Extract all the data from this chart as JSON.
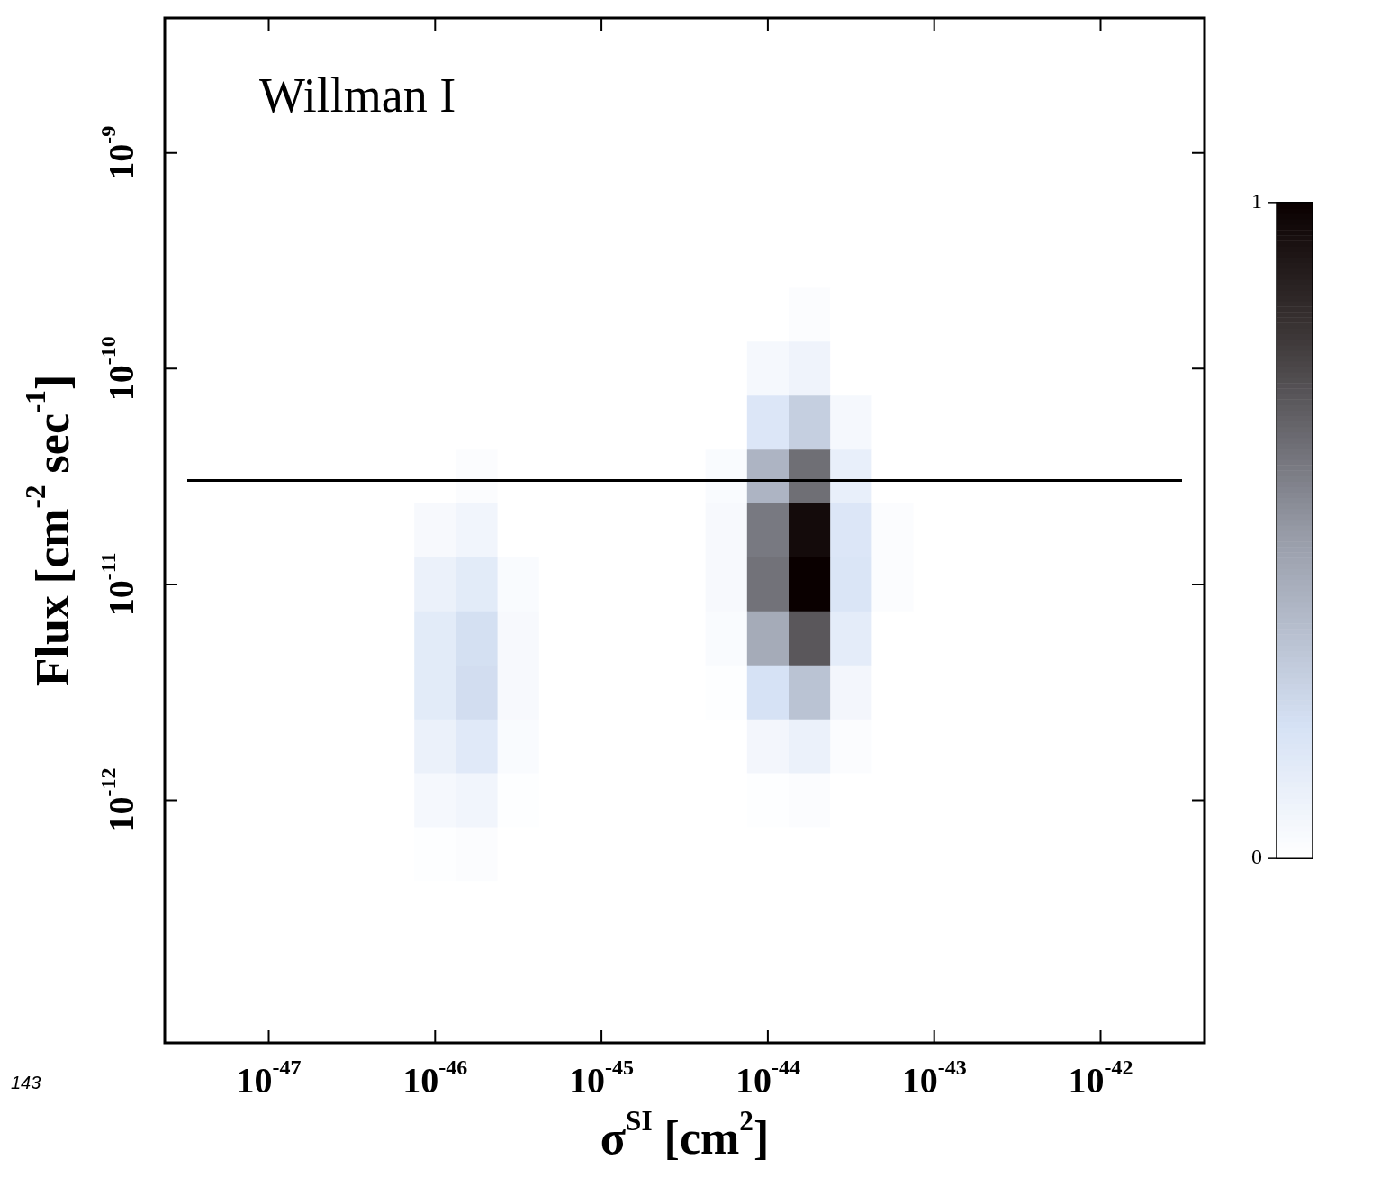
{
  "chart_data": {
    "type": "heatmap",
    "xlabel": "σ$^{SI}$ [cm$^{2}$]",
    "ylabel": "Flux [cm$^{-2}$ sec$^{-1}$]",
    "annotations": [
      "Willman I",
      "143"
    ],
    "clim": [
      0,
      1
    ],
    "cticks": [
      0,
      1
    ],
    "categories": [
      null,
      null,
      "10$^{-47}$",
      null,
      null,
      null,
      "10$^{-46}$",
      null,
      null,
      null,
      "10$^{-45}$",
      null,
      null,
      null,
      "10$^{-44}$",
      null,
      null,
      null,
      "10$^{-43}$",
      null,
      null,
      null,
      "10$^{-42}$",
      null,
      null
    ],
    "y_categories": [
      null,
      null,
      "10$^{-9}$",
      null,
      null,
      null,
      "10$^{-10}$",
      null,
      null,
      null,
      "10$^{-11}$",
      null,
      null,
      null,
      "10$^{-12}$",
      null,
      null,
      null,
      null
    ],
    "cells": [
      [
        0,
        0,
        0,
        0,
        0,
        0,
        0,
        0,
        0,
        0,
        0,
        0,
        0,
        0,
        0,
        0,
        0,
        0,
        0,
        0,
        0,
        0,
        0,
        0,
        0
      ],
      [
        0,
        0,
        0,
        0,
        0,
        0,
        0,
        0,
        0,
        0,
        0,
        0,
        0,
        0,
        0,
        0,
        0,
        0,
        0,
        0,
        0,
        0,
        0,
        0,
        0
      ],
      [
        0,
        0,
        0,
        0,
        0,
        0,
        0,
        0,
        0,
        0,
        0,
        0,
        0,
        0,
        0,
        0,
        0,
        0,
        0,
        0,
        0,
        0,
        0,
        0,
        0
      ],
      [
        0,
        0,
        0,
        0,
        0,
        0,
        0,
        0,
        0,
        0,
        0,
        0,
        0,
        0,
        0,
        0,
        0,
        0,
        0,
        0,
        0,
        0,
        0,
        0,
        0
      ],
      [
        0,
        0,
        0,
        0,
        0,
        0,
        0,
        0,
        0,
        0,
        0,
        0,
        0,
        0,
        0,
        0,
        0,
        0,
        0,
        0,
        0,
        0,
        0,
        0,
        0
      ],
      [
        0,
        0,
        0,
        0,
        0,
        0,
        0,
        0,
        0,
        0,
        0,
        0,
        0,
        0,
        0,
        0.02,
        0,
        0,
        0,
        0,
        0,
        0,
        0,
        0,
        0
      ],
      [
        0,
        0,
        0,
        0,
        0,
        0,
        0,
        0,
        0,
        0,
        0,
        0,
        0,
        0,
        0.05,
        0.08,
        0,
        0,
        0,
        0,
        0,
        0,
        0,
        0,
        0
      ],
      [
        0,
        0,
        0,
        0,
        0,
        0,
        0,
        0,
        0,
        0,
        0,
        0,
        0,
        0,
        0.17,
        0.28,
        0.05,
        0,
        0,
        0,
        0,
        0,
        0,
        0,
        0
      ],
      [
        0,
        0,
        0,
        0,
        0,
        0,
        0,
        0.02,
        0,
        0,
        0,
        0,
        0,
        0.03,
        0.39,
        0.63,
        0.11,
        0,
        0,
        0,
        0,
        0,
        0,
        0,
        0
      ],
      [
        0,
        0,
        0,
        0,
        0,
        0,
        0.04,
        0.07,
        0,
        0,
        0,
        0,
        0,
        0.04,
        0.6,
        0.96,
        0.17,
        0.02,
        0,
        0,
        0,
        0,
        0,
        0,
        0
      ],
      [
        0,
        0,
        0,
        0,
        0,
        0,
        0.1,
        0.14,
        0.03,
        0,
        0,
        0,
        0,
        0.04,
        0.62,
        1,
        0.18,
        0.02,
        0,
        0,
        0,
        0,
        0,
        0,
        0
      ],
      [
        0,
        0,
        0,
        0,
        0,
        0,
        0.14,
        0.21,
        0.04,
        0,
        0,
        0,
        0,
        0.03,
        0.43,
        0.7,
        0.13,
        0,
        0,
        0,
        0,
        0,
        0,
        0,
        0
      ],
      [
        0,
        0,
        0,
        0,
        0,
        0,
        0.14,
        0.22,
        0.04,
        0,
        0,
        0,
        0,
        0.01,
        0.2,
        0.33,
        0.06,
        0,
        0,
        0,
        0,
        0,
        0,
        0,
        0
      ],
      [
        0,
        0,
        0,
        0,
        0,
        0,
        0.1,
        0.15,
        0.03,
        0,
        0,
        0,
        0,
        0,
        0.06,
        0.1,
        0.02,
        0,
        0,
        0,
        0,
        0,
        0,
        0,
        0
      ],
      [
        0,
        0,
        0,
        0,
        0,
        0,
        0.05,
        0.07,
        0.01,
        0,
        0,
        0,
        0,
        0,
        0.01,
        0.02,
        0,
        0,
        0,
        0,
        0,
        0,
        0,
        0,
        0
      ],
      [
        0,
        0,
        0,
        0,
        0,
        0,
        0.01,
        0.02,
        0,
        0,
        0,
        0,
        0,
        0,
        0,
        0,
        0,
        0,
        0,
        0,
        0,
        0,
        0,
        0,
        0
      ],
      [
        0,
        0,
        0,
        0,
        0,
        0,
        0,
        0,
        0,
        0,
        0,
        0,
        0,
        0,
        0,
        0,
        0,
        0,
        0,
        0,
        0,
        0,
        0,
        0,
        0
      ],
      [
        0,
        0,
        0,
        0,
        0,
        0,
        0,
        0,
        0,
        0,
        0,
        0,
        0,
        0,
        0,
        0,
        0,
        0,
        0,
        0,
        0,
        0,
        0,
        0,
        0
      ],
      [
        0,
        0,
        0,
        0,
        0,
        0,
        0,
        0,
        0,
        0,
        0,
        0,
        0,
        0,
        0,
        0,
        0,
        0,
        0,
        0,
        0,
        0,
        0,
        0,
        0
      ]
    ]
  }
}
